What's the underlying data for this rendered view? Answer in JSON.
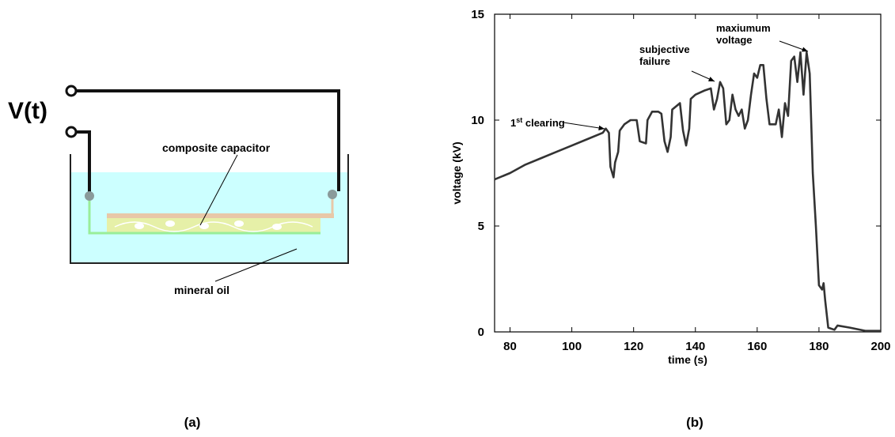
{
  "figure": {
    "panel_labels": [
      "(a)",
      "(b)"
    ],
    "diagram": {
      "source_label": "V(t)",
      "capacitor_label": "composite capacitor",
      "oil_label": "mineral oil"
    }
  },
  "chart_data": {
    "type": "line",
    "xlabel": "time (s)",
    "ylabel": "voltage (kV)",
    "xlim": [
      75,
      200
    ],
    "ylim": [
      0,
      15
    ],
    "xticks": [
      80,
      100,
      120,
      140,
      160,
      180,
      200
    ],
    "yticks": [
      0,
      5,
      10,
      15
    ],
    "annotations": [
      [
        "1",
        "st",
        " clearing"
      ],
      [
        "subjective",
        "failure"
      ],
      [
        "maxiumum",
        "voltage"
      ]
    ],
    "x": [
      75,
      80,
      85,
      90,
      95,
      100,
      105,
      110,
      111,
      112,
      112.5,
      113.5,
      114,
      115,
      115.5,
      117,
      119,
      121,
      122,
      124,
      124.5,
      126,
      128,
      129,
      130,
      131,
      132,
      132.5,
      135,
      136,
      137,
      138,
      138.5,
      140,
      143,
      145,
      146,
      147,
      148,
      149,
      150,
      151,
      152,
      153,
      154,
      155,
      156,
      157,
      158,
      159,
      160,
      161,
      162,
      163,
      164,
      166,
      167,
      168,
      169,
      170,
      171,
      172,
      173,
      174,
      175,
      176,
      177,
      178,
      179,
      180,
      181,
      181.5,
      182,
      183,
      185,
      186,
      190,
      195,
      200
    ],
    "series": [
      {
        "color": "#333333",
        "values": [
          7.2,
          7.5,
          7.9,
          8.2,
          8.5,
          8.8,
          9.1,
          9.4,
          9.6,
          9.4,
          7.8,
          7.3,
          8.0,
          8.5,
          9.5,
          9.8,
          10.0,
          10.0,
          9.0,
          8.9,
          10.0,
          10.4,
          10.4,
          10.3,
          9.0,
          8.5,
          9.2,
          10.5,
          10.8,
          9.5,
          8.8,
          9.6,
          11.0,
          11.2,
          11.4,
          11.5,
          10.5,
          11.0,
          11.8,
          11.5,
          9.8,
          10.0,
          11.2,
          10.5,
          10.2,
          10.5,
          9.6,
          10.0,
          11.2,
          12.2,
          12.0,
          12.6,
          12.6,
          11.0,
          9.8,
          9.8,
          10.5,
          9.2,
          10.8,
          10.2,
          12.8,
          13.0,
          11.8,
          13.2,
          11.2,
          13.2,
          12.2,
          7.5,
          5.0,
          2.2,
          2.0,
          2.3,
          1.5,
          0.2,
          0.1,
          0.3,
          0.2,
          0.05,
          0.05
        ]
      }
    ]
  }
}
